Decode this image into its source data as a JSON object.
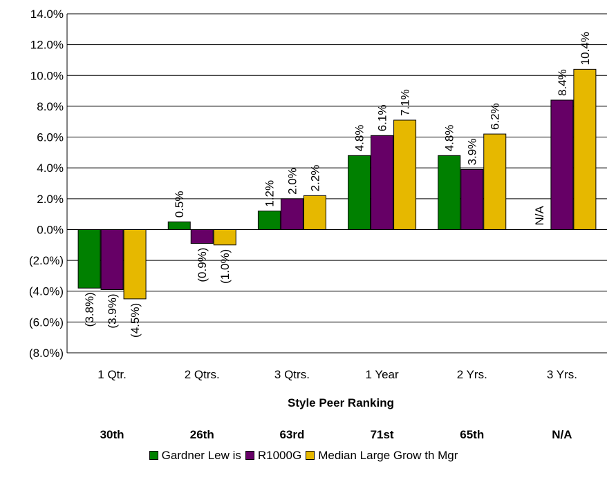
{
  "chart_data": {
    "type": "bar",
    "categories": [
      "1 Qtr.",
      "2 Qtrs.",
      "3 Qtrs.",
      "1 Year",
      "2 Yrs.",
      "3 Yrs."
    ],
    "series": [
      {
        "name": "Gardner Lew is",
        "color": "#008000",
        "values": [
          -3.8,
          0.5,
          1.2,
          4.8,
          4.8,
          null
        ],
        "labels": [
          "(3.8%)",
          "0.5%",
          "1.2%",
          "4.8%",
          "4.8%",
          "N/A"
        ]
      },
      {
        "name": "R1000G",
        "color": "#660066",
        "values": [
          -3.9,
          -0.9,
          2.0,
          6.1,
          3.9,
          8.4
        ],
        "labels": [
          "(3.9%)",
          "(0.9%)",
          "2.0%",
          "6.1%",
          "3.9%",
          "8.4%"
        ]
      },
      {
        "name": "Median Large Grow th Mgr",
        "color": "#E6B800",
        "values": [
          -4.5,
          -1.0,
          2.2,
          7.1,
          6.2,
          10.4
        ],
        "labels": [
          "(4.5%)",
          "(1.0%)",
          "2.2%",
          "7.1%",
          "6.2%",
          "10.4%"
        ]
      }
    ],
    "ylim": [
      -8.0,
      14.0
    ],
    "yticks": [
      14.0,
      12.0,
      10.0,
      8.0,
      6.0,
      4.0,
      2.0,
      0.0,
      -2.0,
      -4.0,
      -6.0,
      -8.0
    ],
    "ytick_labels": [
      "14.0%",
      "12.0%",
      "10.0%",
      "8.0%",
      "6.0%",
      "4.0%",
      "2.0%",
      "0.0%",
      "(2.0%)",
      "(4.0%)",
      "(6.0%)",
      "(8.0%)"
    ],
    "grid": true,
    "legend_position": "bottom",
    "rank_header": "Style Peer Ranking",
    "ranks": [
      "30th",
      "26th",
      "63rd",
      "71st",
      "65th",
      "N/A"
    ]
  }
}
